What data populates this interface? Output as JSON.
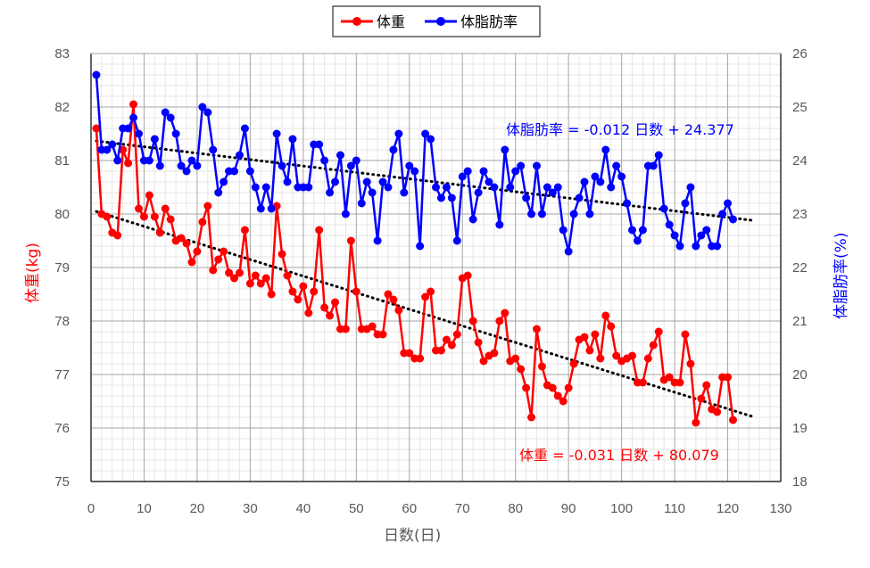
{
  "chart_data": {
    "type": "line",
    "xlabel": "日数(日)",
    "ylabel_left": "体重(kg)",
    "ylabel_right": "体脂肪率(%)",
    "xlim": [
      0,
      130
    ],
    "xticks": [
      0,
      10,
      20,
      30,
      40,
      50,
      60,
      70,
      80,
      90,
      100,
      110,
      120,
      130
    ],
    "ylim_left": [
      75,
      83
    ],
    "yticks_left": [
      75,
      76,
      77,
      78,
      79,
      80,
      81,
      82,
      83
    ],
    "ylim_right": [
      18,
      26
    ],
    "yticks_right": [
      18,
      19,
      20,
      21,
      22,
      23,
      24,
      25,
      26
    ],
    "grid": true,
    "legend_position": "top-center",
    "series": [
      {
        "name": "体重",
        "axis": "left",
        "color": "#ff0000",
        "x": [
          1,
          2,
          3,
          4,
          5,
          6,
          7,
          8,
          9,
          10,
          11,
          12,
          13,
          14,
          15,
          16,
          17,
          18,
          19,
          20,
          21,
          22,
          23,
          24,
          25,
          26,
          27,
          28,
          29,
          30,
          31,
          32,
          33,
          34,
          35,
          36,
          37,
          38,
          39,
          40,
          41,
          42,
          43,
          44,
          45,
          46,
          47,
          48,
          49,
          50,
          51,
          52,
          53,
          54,
          55,
          56,
          57,
          58,
          59,
          60,
          61,
          62,
          63,
          64,
          65,
          66,
          67,
          68,
          69,
          70,
          71,
          72,
          73,
          74,
          75,
          76,
          77,
          78,
          79,
          80,
          81,
          82,
          83,
          84,
          85,
          86,
          87,
          88,
          89,
          90,
          91,
          92,
          93,
          94,
          95,
          96,
          97,
          98,
          99,
          100,
          101,
          102,
          103,
          104,
          105,
          106,
          107,
          108,
          109,
          110,
          111,
          112,
          113,
          114,
          115,
          116,
          117,
          118,
          119,
          120,
          121
        ],
        "values": [
          81.6,
          80.0,
          79.95,
          79.65,
          79.6,
          81.2,
          80.95,
          82.05,
          80.1,
          79.95,
          80.35,
          79.95,
          79.65,
          80.1,
          79.9,
          79.5,
          79.55,
          79.45,
          79.1,
          79.3,
          79.85,
          80.15,
          78.95,
          79.15,
          79.3,
          78.9,
          78.8,
          78.9,
          79.7,
          78.7,
          78.85,
          78.7,
          78.8,
          78.5,
          80.15,
          79.25,
          78.85,
          78.55,
          78.4,
          78.65,
          78.15,
          78.55,
          79.7,
          78.25,
          78.1,
          78.35,
          77.85,
          77.85,
          79.5,
          78.55,
          77.85,
          77.85,
          77.9,
          77.75,
          77.75,
          78.5,
          78.4,
          78.2,
          77.4,
          77.4,
          77.3,
          77.3,
          78.45,
          78.55,
          77.45,
          77.45,
          77.65,
          77.55,
          77.75,
          78.8,
          78.85,
          78.0,
          77.6,
          77.25,
          77.35,
          77.4,
          78.0,
          78.15,
          77.25,
          77.3,
          77.1,
          76.75,
          76.2,
          77.85,
          77.15,
          76.8,
          76.75,
          76.6,
          76.5,
          76.75,
          77.2,
          77.65,
          77.7,
          77.45,
          77.75,
          77.3,
          78.1,
          77.9,
          77.35,
          77.25,
          77.3,
          77.35,
          76.85,
          76.85,
          77.3,
          77.55,
          77.8,
          76.9,
          76.95,
          76.85,
          76.85,
          77.75,
          77.2,
          76.1,
          76.55,
          76.8,
          76.35,
          76.3,
          76.95,
          76.95,
          76.15
        ]
      },
      {
        "name": "体脂肪率",
        "axis": "right",
        "color": "#0000ff",
        "x": [
          1,
          2,
          3,
          4,
          5,
          6,
          7,
          8,
          9,
          10,
          11,
          12,
          13,
          14,
          15,
          16,
          17,
          18,
          19,
          20,
          21,
          22,
          23,
          24,
          25,
          26,
          27,
          28,
          29,
          30,
          31,
          32,
          33,
          34,
          35,
          36,
          37,
          38,
          39,
          40,
          41,
          42,
          43,
          44,
          45,
          46,
          47,
          48,
          49,
          50,
          51,
          52,
          53,
          54,
          55,
          56,
          57,
          58,
          59,
          60,
          61,
          62,
          63,
          64,
          65,
          66,
          67,
          68,
          69,
          70,
          71,
          72,
          73,
          74,
          75,
          76,
          77,
          78,
          79,
          80,
          81,
          82,
          83,
          84,
          85,
          86,
          87,
          88,
          89,
          90,
          91,
          92,
          93,
          94,
          95,
          96,
          97,
          98,
          99,
          100,
          101,
          102,
          103,
          104,
          105,
          106,
          107,
          108,
          109,
          110,
          111,
          112,
          113,
          114,
          115,
          116,
          117,
          118,
          119,
          120,
          121
        ],
        "values": [
          25.6,
          24.2,
          24.2,
          24.3,
          24.0,
          24.6,
          24.6,
          24.8,
          24.5,
          24.0,
          24.0,
          24.4,
          23.9,
          24.9,
          24.8,
          24.5,
          23.9,
          23.8,
          24.0,
          23.9,
          25.0,
          24.9,
          24.2,
          23.4,
          23.6,
          23.8,
          23.8,
          24.1,
          24.6,
          23.8,
          23.5,
          23.1,
          23.5,
          23.1,
          24.5,
          23.9,
          23.6,
          24.4,
          23.5,
          23.5,
          23.5,
          24.3,
          24.3,
          24.0,
          23.4,
          23.6,
          24.1,
          23.0,
          23.9,
          24.0,
          23.2,
          23.6,
          23.4,
          22.5,
          23.6,
          23.5,
          24.2,
          24.5,
          23.4,
          23.9,
          23.8,
          22.4,
          24.5,
          24.4,
          23.5,
          23.3,
          23.5,
          23.3,
          22.5,
          23.7,
          23.8,
          22.9,
          23.4,
          23.8,
          23.6,
          23.5,
          22.8,
          24.2,
          23.5,
          23.8,
          23.9,
          23.3,
          23.0,
          23.9,
          23.0,
          23.5,
          23.4,
          23.5,
          22.7,
          22.3,
          23.0,
          23.3,
          23.6,
          23.0,
          23.7,
          23.6,
          24.2,
          23.5,
          23.9,
          23.7,
          23.2,
          22.7,
          22.5,
          22.7,
          23.9,
          23.9,
          24.1,
          23.1,
          22.8,
          22.6,
          22.4,
          23.2,
          23.5,
          22.4,
          22.6,
          22.7,
          22.4,
          22.4,
          23.0,
          23.2,
          22.9
        ]
      }
    ],
    "trendlines": [
      {
        "series": "体重",
        "label": "体重 = -0.031 日数 + 80.079",
        "slope": -0.031,
        "intercept": 80.079,
        "x_range": [
          1,
          125
        ],
        "color": "#ff0000"
      },
      {
        "series": "体脂肪率",
        "label": "体脂肪率 = -0.012 日数 + 24.377",
        "slope": -0.012,
        "intercept": 24.377,
        "x_range": [
          1,
          125
        ],
        "color": "#0000ff"
      }
    ]
  }
}
